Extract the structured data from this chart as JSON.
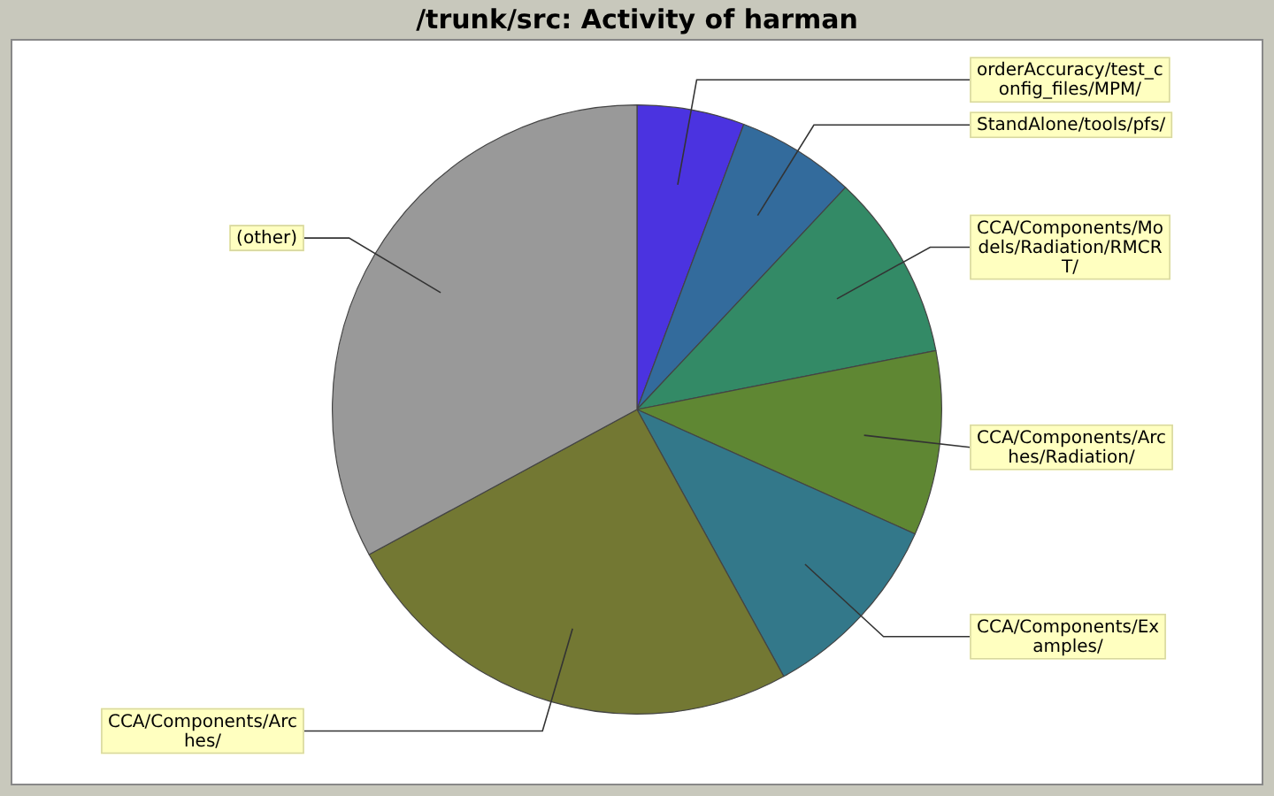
{
  "chart_data": {
    "type": "pie",
    "title": "/trunk/src: Activity of harman",
    "categories": [
      "orderAccuracy/test_config_files/MPM/",
      "StandAlone/tools/pfs/",
      "CCA/Components/Models/Radiation/RMCRT/",
      "CCA/Components/Arches/Radiation/",
      "CCA/Components/Examples/",
      "CCA/Components/Arches/",
      "(other)"
    ],
    "values": [
      5.7,
      6.3,
      9.9,
      9.8,
      10.3,
      25.1,
      32.9
    ],
    "colors": [
      "#4b33e0",
      "#336b9c",
      "#338a66",
      "#5f8733",
      "#33788a",
      "#737833",
      "#999999"
    ]
  }
}
